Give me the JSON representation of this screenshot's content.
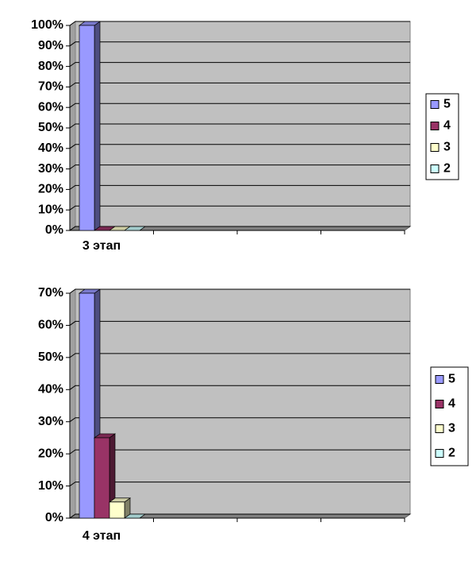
{
  "chart_data": [
    {
      "type": "bar",
      "categories": [
        "3 этап",
        null,
        null,
        null
      ],
      "series": [
        {
          "name": "5",
          "color": "#9999ff",
          "values": [
            100,
            null,
            null,
            null
          ]
        },
        {
          "name": "4",
          "color": "#993366",
          "values": [
            0,
            null,
            null,
            null
          ]
        },
        {
          "name": "3",
          "color": "#ffffcc",
          "values": [
            0,
            null,
            null,
            null
          ]
        },
        {
          "name": "2",
          "color": "#ccffff",
          "values": [
            0,
            null,
            null,
            null
          ]
        }
      ],
      "ylim": [
        0,
        100
      ],
      "yticks": [
        {
          "value": 0,
          "label": "0%"
        },
        {
          "value": 10,
          "label": "10%"
        },
        {
          "value": 20,
          "label": "20%"
        },
        {
          "value": 30,
          "label": "30%"
        },
        {
          "value": 40,
          "label": "40%"
        },
        {
          "value": 50,
          "label": "50%"
        },
        {
          "value": 60,
          "label": "60%"
        },
        {
          "value": 70,
          "label": "70%"
        },
        {
          "value": 80,
          "label": "80%"
        },
        {
          "value": 90,
          "label": "90%"
        },
        {
          "value": 100,
          "label": "100%"
        }
      ],
      "grid": true,
      "legend": "right"
    },
    {
      "type": "bar",
      "categories": [
        "4 этап",
        null,
        null,
        null
      ],
      "series": [
        {
          "name": "5",
          "color": "#9999ff",
          "values": [
            70,
            null,
            null,
            null
          ]
        },
        {
          "name": "4",
          "color": "#993366",
          "values": [
            25,
            null,
            null,
            null
          ]
        },
        {
          "name": "3",
          "color": "#ffffcc",
          "values": [
            5,
            null,
            null,
            null
          ]
        },
        {
          "name": "2",
          "color": "#ccffff",
          "values": [
            0,
            null,
            null,
            null
          ]
        }
      ],
      "ylim": [
        0,
        70
      ],
      "yticks": [
        {
          "value": 0,
          "label": "0%"
        },
        {
          "value": 10,
          "label": "10%"
        },
        {
          "value": 20,
          "label": "20%"
        },
        {
          "value": 30,
          "label": "30%"
        },
        {
          "value": 40,
          "label": "40%"
        },
        {
          "value": 50,
          "label": "50%"
        },
        {
          "value": 60,
          "label": "60%"
        },
        {
          "value": 70,
          "label": "70%"
        }
      ],
      "grid": true,
      "legend": "right"
    }
  ]
}
